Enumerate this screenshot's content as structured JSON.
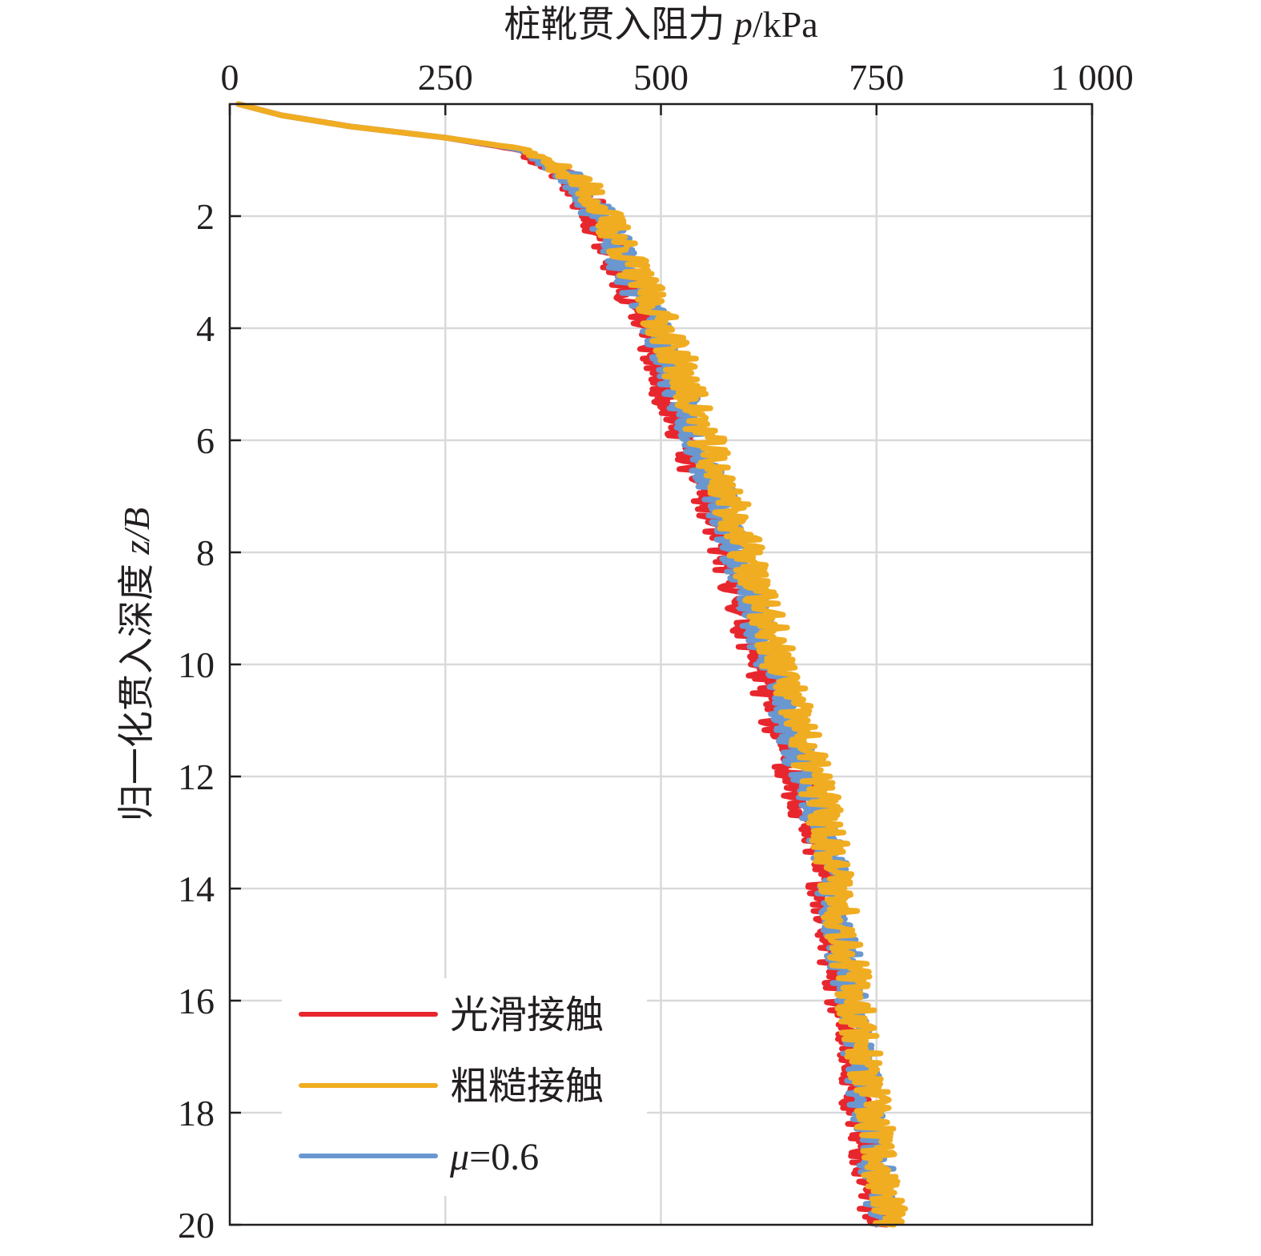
{
  "chart_data": {
    "type": "line",
    "title": "",
    "xlabel": {
      "main": "桩靴贯入阻力 ",
      "var": "p",
      "unit": "/kPa"
    },
    "ylabel": {
      "main": "归一化贯入深度 ",
      "var": "z/B",
      "unit": ""
    },
    "x_axis_position": "top",
    "y_axis_inverted": true,
    "xlim": [
      0,
      1000
    ],
    "ylim": [
      0,
      20
    ],
    "x_ticks": [
      0,
      250,
      500,
      750,
      1000
    ],
    "x_tick_labels": [
      "0",
      "250",
      "500",
      "750",
      "1 000"
    ],
    "y_ticks": [
      2,
      4,
      6,
      8,
      10,
      12,
      14,
      16,
      18,
      20
    ],
    "y_tick_labels": [
      "2",
      "4",
      "6",
      "8",
      "10",
      "12",
      "14",
      "16",
      "18",
      "20"
    ],
    "grid": true,
    "legend_position": "bottom-left",
    "legend": [
      {
        "label": "光滑接触",
        "color": "#e8262d"
      },
      {
        "label": "粗糙接触",
        "color": "#f0ad22"
      },
      {
        "label_var": "μ",
        "label_rest": "=0.6",
        "color": "#6a97cf"
      }
    ],
    "series": [
      {
        "name": "光滑接触",
        "color": "#e8262d",
        "noise": 20,
        "seed": 11,
        "points": [
          [
            10,
            0
          ],
          [
            60,
            0.2
          ],
          [
            140,
            0.4
          ],
          [
            250,
            0.6
          ],
          [
            330,
            0.8
          ],
          [
            380,
            1.2
          ],
          [
            410,
            1.6
          ],
          [
            420,
            2.0
          ],
          [
            440,
            2.5
          ],
          [
            450,
            3.0
          ],
          [
            470,
            3.5
          ],
          [
            485,
            4.0
          ],
          [
            495,
            4.5
          ],
          [
            505,
            5.0
          ],
          [
            515,
            5.5
          ],
          [
            530,
            6.0
          ],
          [
            540,
            6.5
          ],
          [
            555,
            7.0
          ],
          [
            565,
            7.5
          ],
          [
            575,
            8.0
          ],
          [
            585,
            8.5
          ],
          [
            595,
            9.0
          ],
          [
            605,
            9.5
          ],
          [
            615,
            10.0
          ],
          [
            625,
            10.5
          ],
          [
            635,
            11.0
          ],
          [
            645,
            11.5
          ],
          [
            655,
            12.0
          ],
          [
            665,
            12.5
          ],
          [
            675,
            13.0
          ],
          [
            685,
            13.5
          ],
          [
            690,
            14.0
          ],
          [
            695,
            14.5
          ],
          [
            700,
            15.0
          ],
          [
            705,
            15.5
          ],
          [
            710,
            16.0
          ],
          [
            715,
            16.5
          ],
          [
            720,
            17.0
          ],
          [
            725,
            17.5
          ],
          [
            730,
            18.0
          ],
          [
            735,
            18.5
          ],
          [
            740,
            19.0
          ],
          [
            745,
            19.5
          ],
          [
            750,
            20.0
          ]
        ]
      },
      {
        "name": "μ=0.6",
        "color": "#6a97cf",
        "noise": 20,
        "seed": 23,
        "points": [
          [
            10,
            0
          ],
          [
            60,
            0.2
          ],
          [
            140,
            0.4
          ],
          [
            250,
            0.6
          ],
          [
            335,
            0.8
          ],
          [
            385,
            1.2
          ],
          [
            415,
            1.6
          ],
          [
            428,
            2.0
          ],
          [
            448,
            2.5
          ],
          [
            460,
            3.0
          ],
          [
            480,
            3.5
          ],
          [
            495,
            4.0
          ],
          [
            508,
            4.5
          ],
          [
            518,
            5.0
          ],
          [
            528,
            5.5
          ],
          [
            543,
            6.0
          ],
          [
            553,
            6.5
          ],
          [
            568,
            7.0
          ],
          [
            578,
            7.5
          ],
          [
            588,
            8.0
          ],
          [
            598,
            8.5
          ],
          [
            608,
            9.0
          ],
          [
            618,
            9.5
          ],
          [
            628,
            10.0
          ],
          [
            638,
            10.5
          ],
          [
            648,
            11.0
          ],
          [
            658,
            11.5
          ],
          [
            668,
            12.0
          ],
          [
            678,
            12.5
          ],
          [
            688,
            13.0
          ],
          [
            695,
            13.5
          ],
          [
            700,
            14.0
          ],
          [
            705,
            14.5
          ],
          [
            710,
            15.0
          ],
          [
            715,
            15.5
          ],
          [
            720,
            16.0
          ],
          [
            725,
            16.5
          ],
          [
            730,
            17.0
          ],
          [
            735,
            17.5
          ],
          [
            740,
            18.0
          ],
          [
            745,
            18.5
          ],
          [
            750,
            19.0
          ],
          [
            755,
            19.5
          ],
          [
            760,
            20.0
          ]
        ]
      },
      {
        "name": "粗糙接触",
        "color": "#f0ad22",
        "noise": 22,
        "seed": 37,
        "points": [
          [
            10,
            0
          ],
          [
            60,
            0.2
          ],
          [
            140,
            0.4
          ],
          [
            250,
            0.6
          ],
          [
            340,
            0.8
          ],
          [
            390,
            1.2
          ],
          [
            420,
            1.6
          ],
          [
            435,
            2.0
          ],
          [
            455,
            2.5
          ],
          [
            470,
            3.0
          ],
          [
            488,
            3.5
          ],
          [
            503,
            4.0
          ],
          [
            518,
            4.5
          ],
          [
            528,
            5.0
          ],
          [
            540,
            5.5
          ],
          [
            553,
            6.0
          ],
          [
            563,
            6.5
          ],
          [
            578,
            7.0
          ],
          [
            588,
            7.5
          ],
          [
            598,
            8.0
          ],
          [
            608,
            8.5
          ],
          [
            618,
            9.0
          ],
          [
            628,
            9.5
          ],
          [
            638,
            10.0
          ],
          [
            648,
            10.5
          ],
          [
            658,
            11.0
          ],
          [
            668,
            11.5
          ],
          [
            678,
            12.0
          ],
          [
            688,
            12.5
          ],
          [
            695,
            13.0
          ],
          [
            700,
            13.5
          ],
          [
            705,
            14.0
          ],
          [
            710,
            14.5
          ],
          [
            715,
            15.0
          ],
          [
            720,
            15.5
          ],
          [
            725,
            16.0
          ],
          [
            730,
            16.5
          ],
          [
            735,
            17.0
          ],
          [
            740,
            17.5
          ],
          [
            745,
            18.0
          ],
          [
            750,
            18.5
          ],
          [
            755,
            19.0
          ],
          [
            760,
            19.5
          ],
          [
            765,
            20.0
          ]
        ]
      }
    ]
  }
}
